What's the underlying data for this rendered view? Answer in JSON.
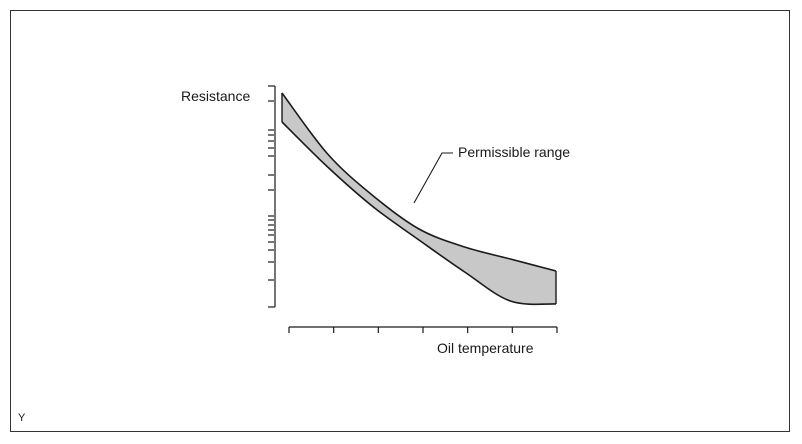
{
  "chart_data": {
    "type": "area",
    "title": "",
    "ylabel": "Resistance",
    "xlabel": "Oil temperature",
    "y_scale": "log",
    "x_ticks_count": 7,
    "grid": false,
    "legend": "none",
    "annotation": "Permissible range",
    "band_fill": "#c8c8c8",
    "line_color": "#1a1a1a",
    "corner_mark": "Y",
    "series": [
      {
        "role": "upper-bound",
        "x": [
          0,
          1,
          2,
          3,
          4,
          5,
          6
        ],
        "y": [
          93,
          154,
          196,
          229,
          247,
          259,
          271
        ]
      },
      {
        "role": "lower-bound",
        "x": [
          0,
          1,
          2,
          3,
          4,
          5,
          6
        ],
        "y": [
          122,
          167,
          207,
          240,
          272,
          301,
          304
        ]
      }
    ]
  }
}
